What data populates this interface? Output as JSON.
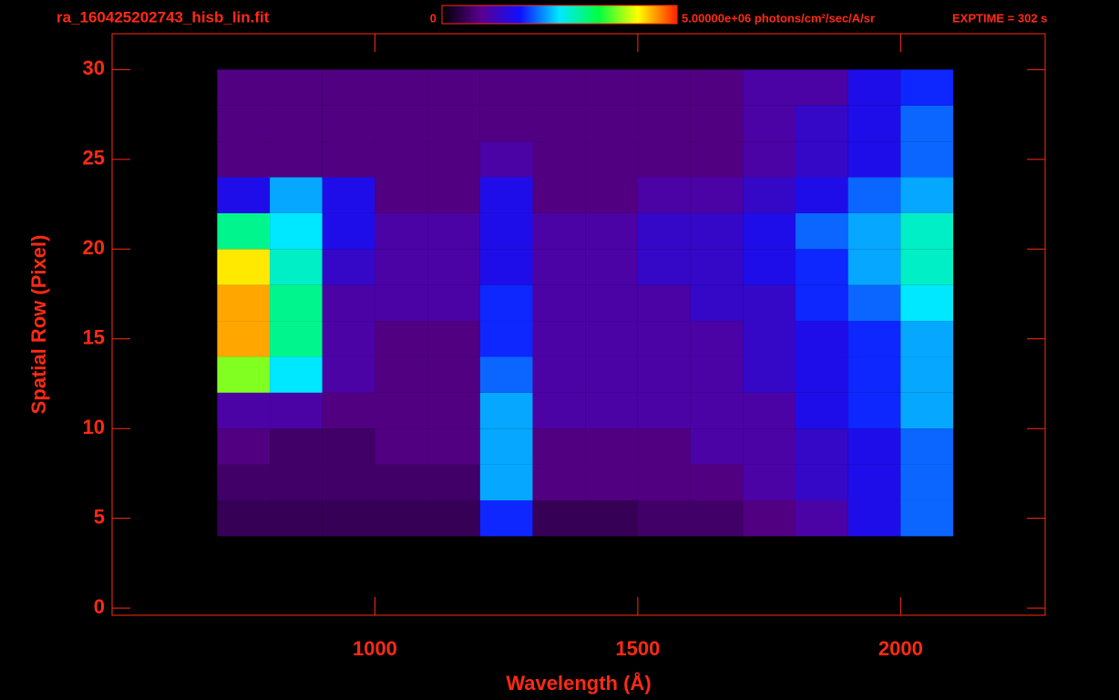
{
  "chart_data": {
    "type": "heatmap",
    "title": "ra_160425202743_hisb_lin.fit",
    "annotation": "EXPTIME = 302 s",
    "xlabel": "Wavelength (Å)",
    "ylabel": "Spatial Row (Pixel)",
    "xlim": [
      500,
      2275
    ],
    "xticks": [
      1000,
      1500,
      2000
    ],
    "ylim": [
      -0.4,
      32
    ],
    "yticks": [
      0,
      5,
      10,
      15,
      20,
      25,
      30
    ],
    "zlim": [
      0,
      5000000
    ],
    "zticks": [
      0,
      {
        "value": 5000000,
        "label": "5.00000e+06 photons/cm²/sec/A/sr"
      }
    ],
    "colormap": [
      "#000000",
      "#5a0090",
      "#1010ff",
      "#00e8ff",
      "#00ff40",
      "#ffff00",
      "#ff2000"
    ],
    "axis_color": "#ff2a14",
    "xbins": [
      700,
      800,
      900,
      1000,
      1100,
      1200,
      1300,
      1400,
      1500,
      1600,
      1700,
      1800,
      1900,
      2000,
      2100
    ],
    "ybins": [
      4,
      6,
      8,
      10,
      12,
      14,
      16,
      18,
      20,
      22,
      24,
      26,
      28,
      30
    ],
    "z": [
      [
        500000,
        500000,
        500000,
        500000,
        500000,
        1750000,
        500000,
        500000,
        600000,
        600000,
        750000,
        1000000,
        1500000,
        2000000
      ],
      [
        600000,
        600000,
        600000,
        600000,
        600000,
        2250000,
        750000,
        750000,
        750000,
        750000,
        1000000,
        1250000,
        1500000,
        2000000
      ],
      [
        750000,
        600000,
        600000,
        750000,
        750000,
        2250000,
        750000,
        750000,
        750000,
        1000000,
        1000000,
        1250000,
        1500000,
        2000000
      ],
      [
        1000000,
        1000000,
        750000,
        750000,
        750000,
        2250000,
        1000000,
        1000000,
        1000000,
        1000000,
        1000000,
        1500000,
        1750000,
        2250000
      ],
      [
        3750000,
        2500000,
        1000000,
        750000,
        750000,
        2000000,
        1000000,
        1000000,
        1000000,
        1000000,
        1250000,
        1500000,
        1750000,
        2250000
      ],
      [
        4500000,
        3000000,
        1000000,
        750000,
        750000,
        1750000,
        1000000,
        1000000,
        1000000,
        1000000,
        1250000,
        1500000,
        1750000,
        2250000
      ],
      [
        4500000,
        3000000,
        1000000,
        1000000,
        1000000,
        1750000,
        1000000,
        1000000,
        1000000,
        1250000,
        1250000,
        1750000,
        2000000,
        2500000
      ],
      [
        4250000,
        2750000,
        1250000,
        1000000,
        1000000,
        1500000,
        1000000,
        1000000,
        1250000,
        1250000,
        1500000,
        1750000,
        2250000,
        2750000
      ],
      [
        3000000,
        2500000,
        1500000,
        1000000,
        1000000,
        1500000,
        1000000,
        1000000,
        1250000,
        1250000,
        1500000,
        2000000,
        2250000,
        2750000
      ],
      [
        1500000,
        2250000,
        1500000,
        750000,
        750000,
        1500000,
        750000,
        750000,
        1000000,
        1000000,
        1250000,
        1500000,
        2000000,
        2250000
      ],
      [
        750000,
        750000,
        750000,
        750000,
        750000,
        1000000,
        750000,
        750000,
        750000,
        750000,
        1000000,
        1250000,
        1500000,
        2000000
      ],
      [
        750000,
        750000,
        750000,
        750000,
        750000,
        750000,
        750000,
        750000,
        750000,
        750000,
        1000000,
        1250000,
        1500000,
        2000000
      ],
      [
        750000,
        750000,
        750000,
        750000,
        750000,
        750000,
        750000,
        750000,
        750000,
        750000,
        1000000,
        1000000,
        1500000,
        1750000
      ]
    ]
  }
}
